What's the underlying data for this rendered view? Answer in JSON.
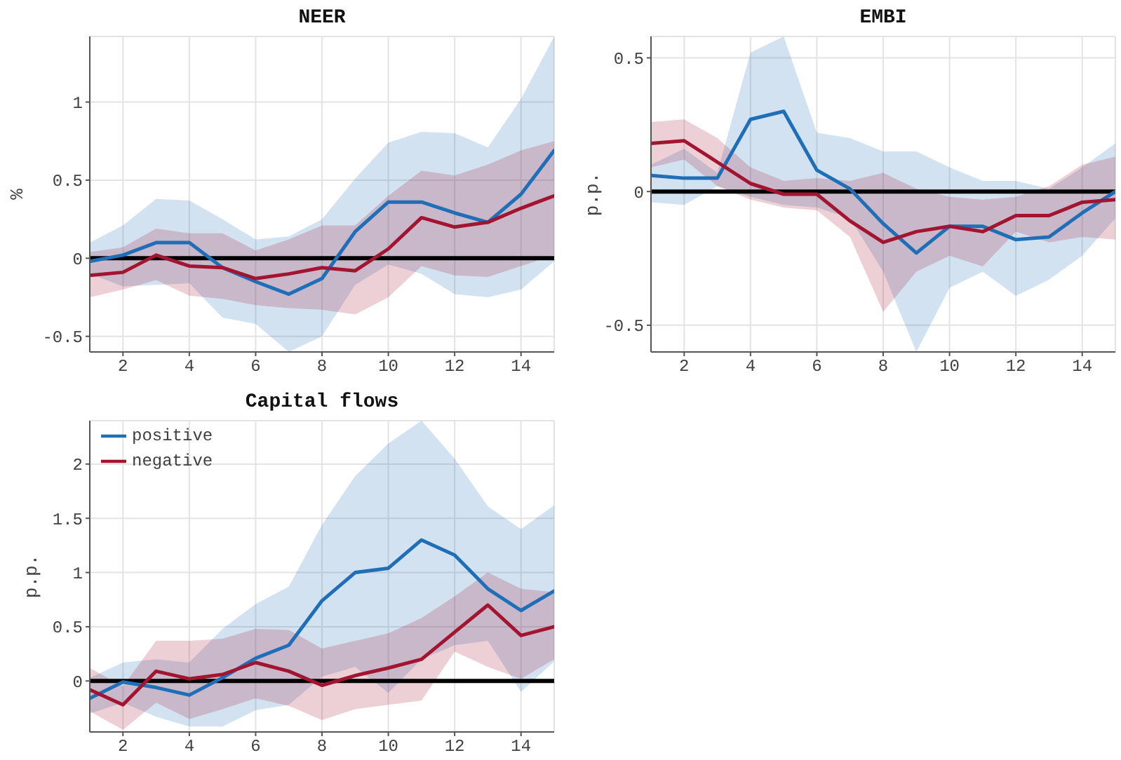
{
  "chart_data": [
    {
      "type": "line",
      "title": "NEER",
      "ylabel": "%",
      "x": [
        1,
        2,
        3,
        4,
        5,
        6,
        7,
        8,
        9,
        10,
        11,
        12,
        13,
        14,
        15
      ],
      "xlim": [
        1,
        15
      ],
      "xticks": [
        2,
        4,
        6,
        8,
        10,
        12,
        14
      ],
      "ylim": [
        -0.6,
        1.42
      ],
      "yticks": [
        -0.5,
        0,
        0.5,
        1
      ],
      "grid": true,
      "marker": "none",
      "ref_lines": [
        {
          "axis": "y",
          "value": 0,
          "color": "#000000"
        }
      ],
      "series": [
        {
          "color": "#1f6fb8",
          "values": [
            -0.02,
            0.02,
            0.1,
            0.1,
            -0.06,
            -0.15,
            -0.23,
            -0.13,
            0.17,
            0.36,
            0.36,
            0.29,
            0.23,
            0.41,
            0.69
          ],
          "lower": [
            -0.1,
            -0.18,
            -0.17,
            -0.16,
            -0.38,
            -0.42,
            -0.6,
            -0.5,
            -0.17,
            -0.04,
            -0.1,
            -0.23,
            -0.25,
            -0.2,
            -0.02
          ],
          "upper": [
            0.1,
            0.21,
            0.38,
            0.37,
            0.25,
            0.12,
            0.14,
            0.25,
            0.51,
            0.74,
            0.81,
            0.8,
            0.71,
            1.02,
            1.42
          ]
        },
        {
          "color": "#a2142f",
          "values": [
            -0.11,
            -0.09,
            0.02,
            -0.05,
            -0.06,
            -0.13,
            -0.1,
            -0.06,
            -0.08,
            0.06,
            0.26,
            0.2,
            0.23,
            0.32,
            0.4
          ],
          "lower": [
            -0.25,
            -0.2,
            -0.14,
            -0.24,
            -0.26,
            -0.3,
            -0.32,
            -0.33,
            -0.36,
            -0.25,
            -0.05,
            -0.11,
            -0.12,
            -0.05,
            0.02
          ],
          "upper": [
            0.04,
            0.07,
            0.19,
            0.16,
            0.16,
            0.05,
            0.12,
            0.21,
            0.21,
            0.4,
            0.56,
            0.53,
            0.6,
            0.69,
            0.75
          ]
        }
      ]
    },
    {
      "type": "line",
      "title": "EMBI",
      "ylabel": "p.p.",
      "x": [
        1,
        2,
        3,
        4,
        5,
        6,
        7,
        8,
        9,
        10,
        11,
        12,
        13,
        14,
        15
      ],
      "xlim": [
        1,
        15
      ],
      "xticks": [
        2,
        4,
        6,
        8,
        10,
        12,
        14
      ],
      "ylim": [
        -0.6,
        0.58
      ],
      "yticks": [
        -0.5,
        0,
        0.5
      ],
      "grid": true,
      "marker": "none",
      "ref_lines": [
        {
          "axis": "y",
          "value": 0,
          "color": "#000000"
        }
      ],
      "series": [
        {
          "color": "#1f6fb8",
          "values": [
            0.06,
            0.05,
            0.05,
            0.27,
            0.3,
            0.08,
            0.01,
            -0.12,
            -0.23,
            -0.13,
            -0.13,
            -0.18,
            -0.17,
            -0.08,
            0
          ],
          "lower": [
            -0.04,
            -0.05,
            0.02,
            -0.02,
            -0.05,
            -0.06,
            -0.1,
            -0.3,
            -0.6,
            -0.36,
            -0.3,
            -0.39,
            -0.33,
            -0.24,
            -0.1
          ],
          "upper": [
            0.1,
            0.16,
            0.07,
            0.52,
            0.58,
            0.22,
            0.2,
            0.15,
            0.15,
            0.09,
            0.04,
            0.04,
            0.01,
            0.09,
            0.18
          ]
        },
        {
          "color": "#a2142f",
          "values": [
            0.18,
            0.19,
            0.11,
            0.03,
            -0.01,
            -0.01,
            -0.11,
            -0.19,
            -0.15,
            -0.13,
            -0.15,
            -0.09,
            -0.09,
            -0.04,
            -0.03
          ],
          "lower": [
            0.09,
            0.12,
            0.02,
            -0.03,
            -0.06,
            -0.07,
            -0.17,
            -0.45,
            -0.3,
            -0.24,
            -0.28,
            -0.15,
            -0.19,
            -0.17,
            -0.18
          ],
          "upper": [
            0.26,
            0.27,
            0.2,
            0.09,
            0.04,
            0.05,
            0.04,
            0.07,
            0.01,
            -0.02,
            -0.03,
            -0.02,
            0.02,
            0.1,
            0.13
          ]
        }
      ]
    },
    {
      "type": "line",
      "title": "Capital flows",
      "ylabel": "p.p.",
      "x": [
        1,
        2,
        3,
        4,
        5,
        6,
        7,
        8,
        9,
        10,
        11,
        12,
        13,
        14,
        15
      ],
      "xlim": [
        1,
        15
      ],
      "xticks": [
        2,
        4,
        6,
        8,
        10,
        12,
        14
      ],
      "ylim": [
        -0.47,
        2.4
      ],
      "yticks": [
        0,
        0.5,
        1,
        1.5,
        2
      ],
      "grid": true,
      "marker": "none",
      "legend": "top left",
      "ref_lines": [
        {
          "axis": "y",
          "value": 0,
          "color": "#000000"
        }
      ],
      "series": [
        {
          "name": "positive",
          "color": "#1f6fb8",
          "values": [
            -0.16,
            -0.01,
            -0.06,
            -0.13,
            0.03,
            0.21,
            0.33,
            0.74,
            1.0,
            1.04,
            1.3,
            1.16,
            0.85,
            0.65,
            0.83
          ],
          "lower": [
            -0.3,
            -0.2,
            -0.33,
            -0.42,
            -0.42,
            -0.27,
            -0.22,
            0.04,
            0.13,
            -0.11,
            0.2,
            0.33,
            0.37,
            -0.1,
            0.18
          ],
          "upper": [
            0.03,
            0.17,
            0.2,
            0.17,
            0.48,
            0.71,
            0.87,
            1.44,
            1.89,
            2.19,
            2.4,
            2.05,
            1.61,
            1.4,
            1.62
          ]
        },
        {
          "name": "negative",
          "color": "#a2142f",
          "values": [
            -0.08,
            -0.22,
            0.09,
            0.02,
            0.06,
            0.17,
            0.09,
            -0.04,
            0.05,
            0.12,
            0.2,
            0.45,
            0.7,
            0.42,
            0.5
          ],
          "lower": [
            -0.28,
            -0.45,
            -0.2,
            -0.35,
            -0.26,
            -0.16,
            -0.23,
            -0.36,
            -0.26,
            -0.22,
            -0.18,
            0.27,
            0.13,
            0.02,
            0.2
          ],
          "upper": [
            0.12,
            -0.05,
            0.37,
            0.37,
            0.39,
            0.48,
            0.47,
            0.3,
            0.37,
            0.44,
            0.58,
            0.78,
            1.0,
            0.85,
            0.82
          ]
        }
      ]
    }
  ]
}
